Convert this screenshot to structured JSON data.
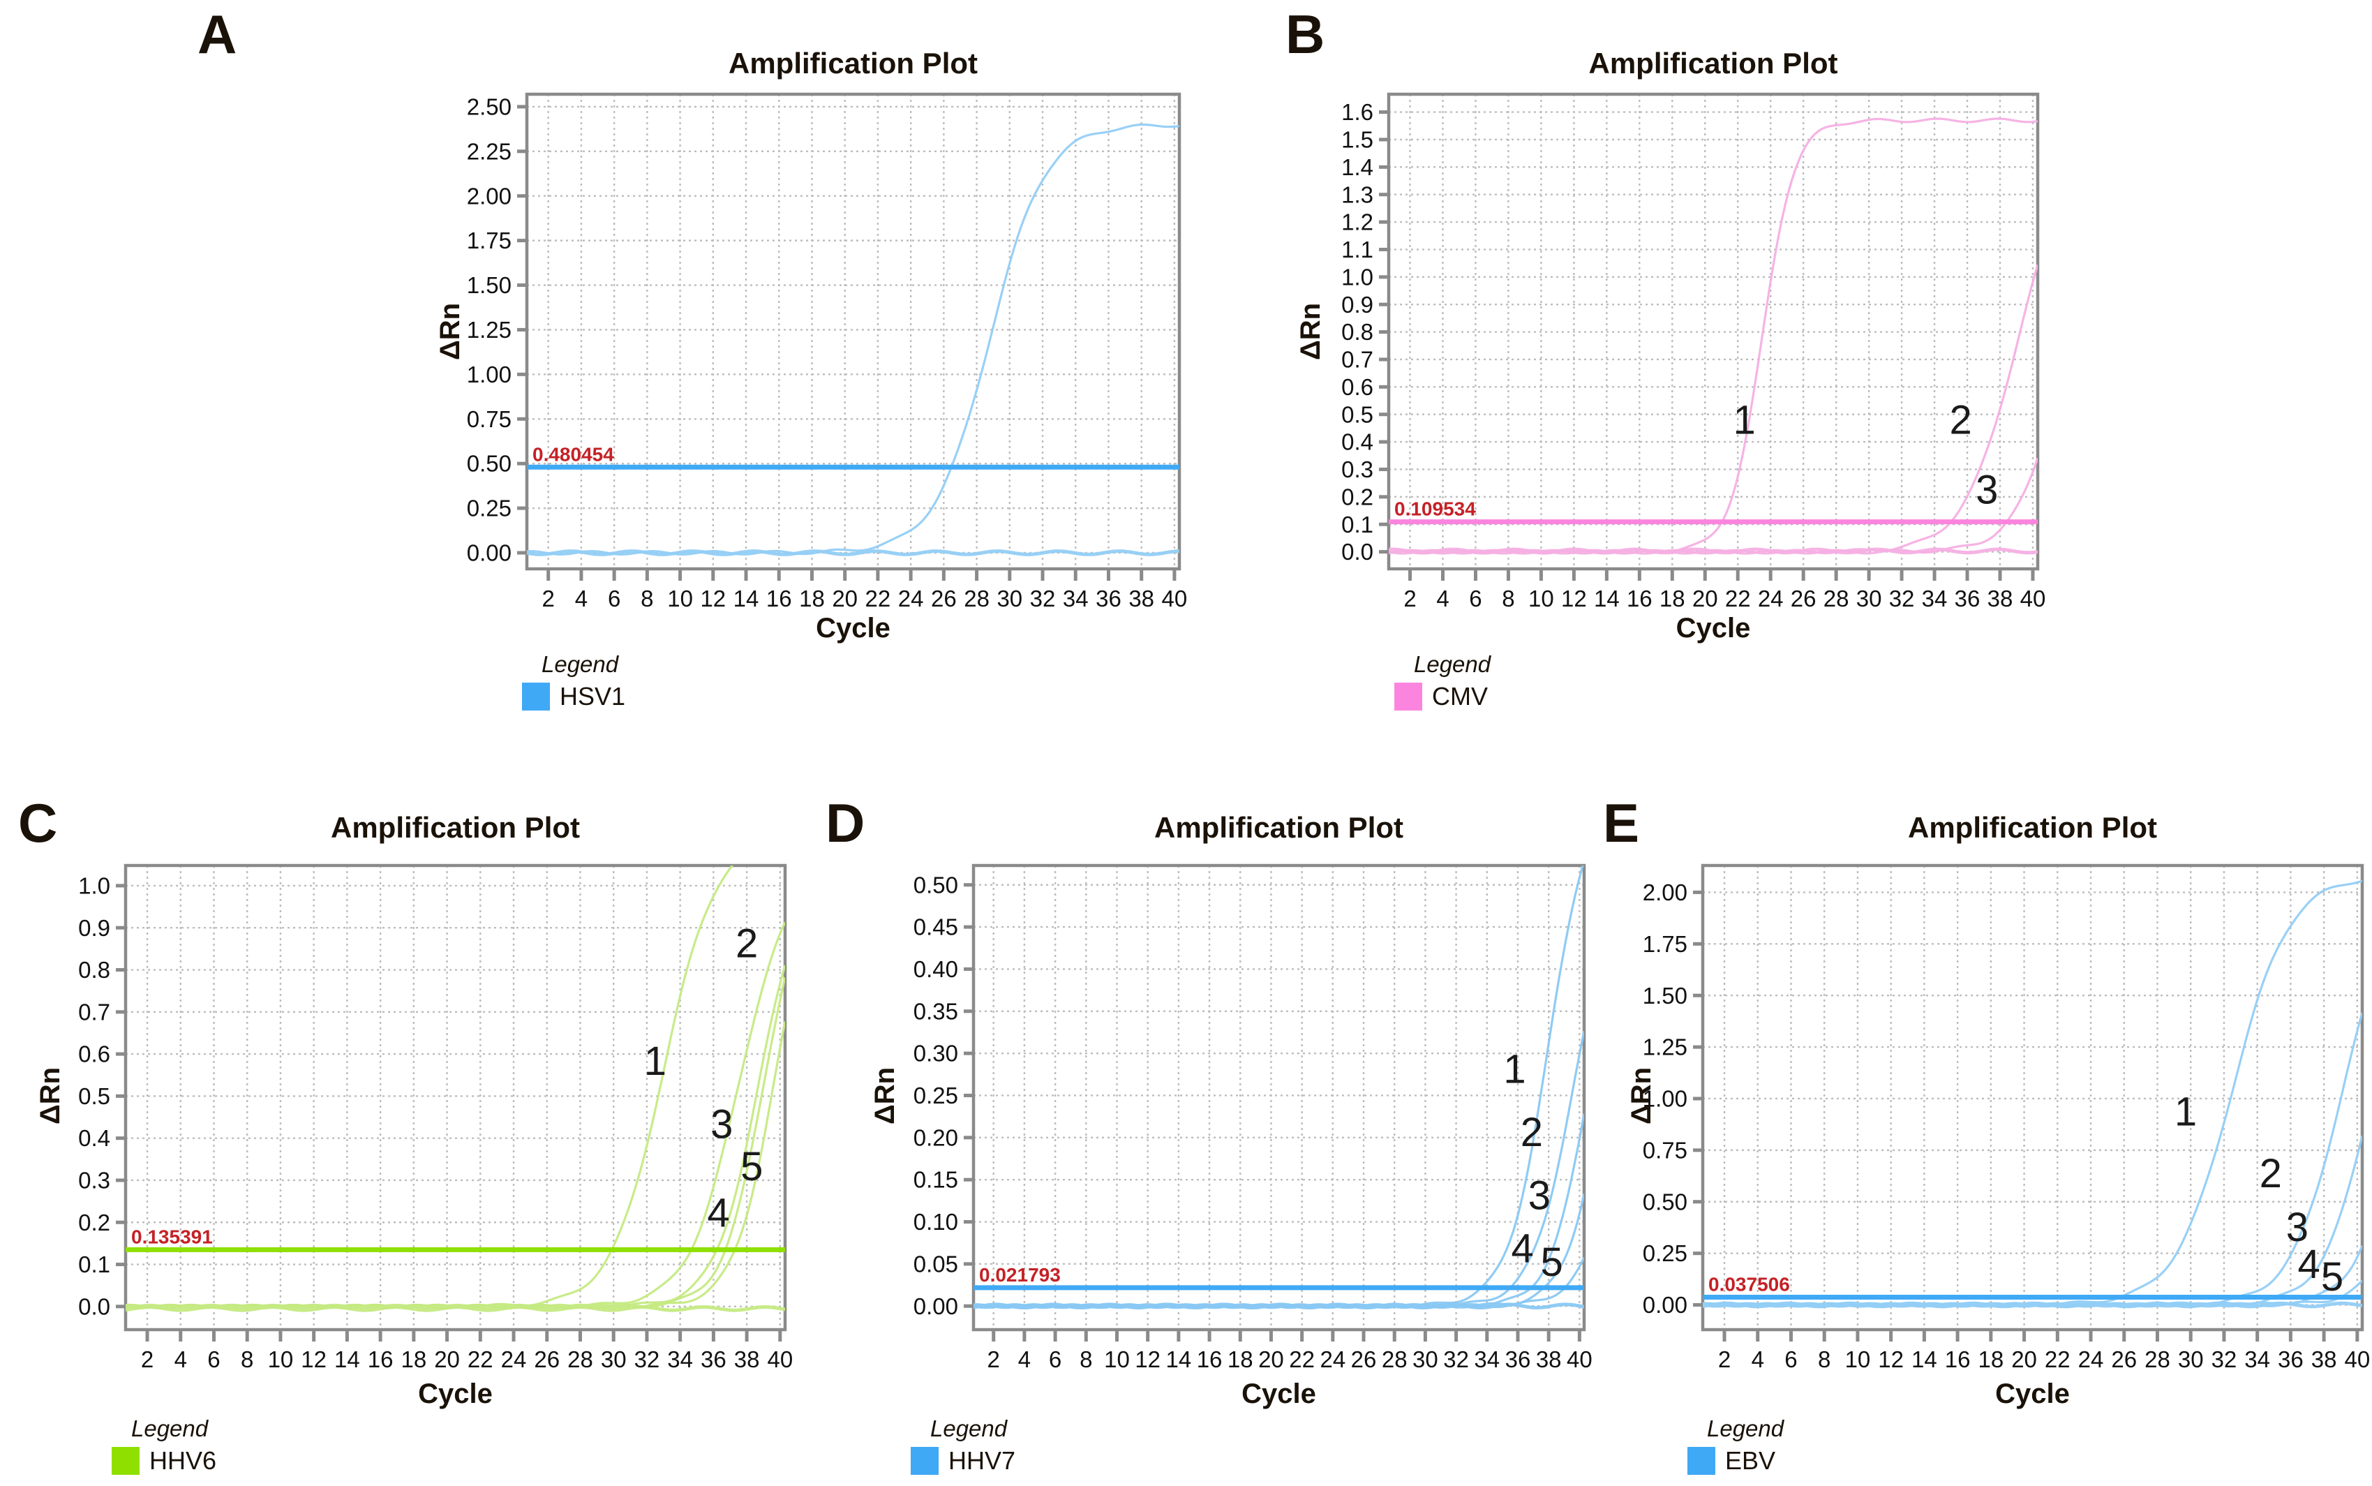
{
  "figure_colors": {
    "threshold_label_red": "#C42126",
    "grid": "#BDBDBD",
    "frame": "#8A8A8A",
    "text": "#111111"
  },
  "chart_data": [
    {
      "panel": "A",
      "type": "line",
      "title": "Amplification Plot",
      "xlabel": "Cycle",
      "ylabel": "ΔRn",
      "legend_title": "Legend",
      "legend_label": "HSV1",
      "color": "#3FA9F5",
      "curve_color": "#92CDF6",
      "threshold": {
        "value": "0.480454",
        "y": 0.48
      },
      "xlim": [
        0.7,
        40.3
      ],
      "ylim": [
        -0.09,
        2.57
      ],
      "x_ticks": [
        2,
        4,
        6,
        8,
        10,
        12,
        14,
        16,
        18,
        20,
        22,
        24,
        26,
        28,
        30,
        32,
        34,
        36,
        38,
        40
      ],
      "y_tick_vals": [
        0,
        0.25,
        0.5,
        0.75,
        1,
        1.25,
        1.5,
        1.75,
        2,
        2.25,
        2.5
      ],
      "y_tick_labels": [
        "0.00",
        "0.25",
        "0.50",
        "0.75",
        "1.00",
        "1.25",
        "1.50",
        "1.75",
        "2.00",
        "2.25",
        "2.50"
      ],
      "series": [
        {
          "name": "HSV1 positive sample",
          "kind": "sigmoid",
          "plateau": 2.4,
          "midpoint": 28.8,
          "k": 1.66
        },
        {
          "name": "negative baseline",
          "kind": "flat",
          "y": 0.0
        }
      ],
      "curve_labels": []
    },
    {
      "panel": "B",
      "type": "line",
      "title": "Amplification Plot",
      "xlabel": "Cycle",
      "ylabel": "ΔRn",
      "legend_title": "Legend",
      "legend_label": "CMV",
      "color": "#FB85DE",
      "curve_color": "#F5AFE3",
      "threshold": {
        "value": "0.109534",
        "y": 0.109
      },
      "xlim": [
        0.7,
        40.3
      ],
      "ylim": [
        -0.062,
        1.665
      ],
      "x_ticks": [
        2,
        4,
        6,
        8,
        10,
        12,
        14,
        16,
        18,
        20,
        22,
        24,
        26,
        28,
        30,
        32,
        34,
        36,
        38,
        40
      ],
      "y_tick_vals": [
        0,
        0.1,
        0.2,
        0.3,
        0.4,
        0.5,
        0.6,
        0.7,
        0.8,
        0.9,
        1.0,
        1.1,
        1.2,
        1.3,
        1.4,
        1.5,
        1.6
      ],
      "y_tick_labels": [
        "0.0",
        "0.1",
        "0.2",
        "0.3",
        "0.4",
        "0.5",
        "0.6",
        "0.7",
        "0.8",
        "0.9",
        "1.0",
        "1.1",
        "1.2",
        "1.3",
        "1.4",
        "1.5",
        "1.6"
      ],
      "series": [
        {
          "name": "1",
          "kind": "sigmoid",
          "plateau": 1.57,
          "midpoint": 23.5,
          "k": 0.97
        },
        {
          "name": "2",
          "kind": "sigmoid",
          "plateau": 1.5,
          "midpoint": 39.0,
          "k": 1.6
        },
        {
          "name": "3",
          "kind": "sigmoid",
          "plateau": 1.5,
          "midpoint": 42.0,
          "k": 1.4
        },
        {
          "name": "baseline",
          "kind": "flat",
          "y": 0.003
        }
      ],
      "curve_labels": [
        {
          "text": "1",
          "x": 22.4,
          "y": 0.43
        },
        {
          "text": "2",
          "x": 35.6,
          "y": 0.43
        },
        {
          "text": "3",
          "x": 37.2,
          "y": 0.175
        }
      ]
    },
    {
      "panel": "C",
      "type": "line",
      "title": "Amplification Plot",
      "xlabel": "Cycle",
      "ylabel": "ΔRn",
      "legend_title": "Legend",
      "legend_label": "HHV6",
      "color": "#8FE000",
      "curve_color": "#C5EA82",
      "threshold": {
        "value": "0.135391",
        "y": 0.135
      },
      "xlim": [
        0.7,
        40.3
      ],
      "ylim": [
        -0.055,
        1.048
      ],
      "x_ticks": [
        2,
        4,
        6,
        8,
        10,
        12,
        14,
        16,
        18,
        20,
        22,
        24,
        26,
        28,
        30,
        32,
        34,
        36,
        38,
        40
      ],
      "y_tick_vals": [
        0,
        0.1,
        0.2,
        0.3,
        0.4,
        0.5,
        0.6,
        0.7,
        0.8,
        0.9,
        1.0
      ],
      "y_tick_labels": [
        "0.0",
        "0.1",
        "0.2",
        "0.3",
        "0.4",
        "0.5",
        "0.6",
        "0.7",
        "0.8",
        "0.9",
        "1.0"
      ],
      "series": [
        {
          "name": "1",
          "kind": "sigmoid",
          "plateau": 1.12,
          "midpoint": 33.0,
          "k": 1.55
        },
        {
          "name": "2",
          "kind": "sigmoid",
          "plateau": 1.05,
          "midpoint": 37.5,
          "k": 1.5
        },
        {
          "name": "3",
          "kind": "sigmoid",
          "plateau": 1.05,
          "midpoint": 38.7,
          "k": 1.3
        },
        {
          "name": "4",
          "kind": "sigmoid",
          "plateau": 1.05,
          "midpoint": 39.0,
          "k": 1.2
        },
        {
          "name": "5",
          "kind": "sigmoid",
          "plateau": 1.05,
          "midpoint": 39.6,
          "k": 1.2
        },
        {
          "name": "baseline",
          "kind": "flat",
          "y": -0.005
        }
      ],
      "curve_labels": [
        {
          "text": "1",
          "x": 32.5,
          "y": 0.55
        },
        {
          "text": "2",
          "x": 38.0,
          "y": 0.83
        },
        {
          "text": "3",
          "x": 36.5,
          "y": 0.4
        },
        {
          "text": "4",
          "x": 36.3,
          "y": 0.19
        },
        {
          "text": "5",
          "x": 38.3,
          "y": 0.3
        }
      ]
    },
    {
      "panel": "D",
      "type": "line",
      "title": "Amplification Plot",
      "xlabel": "Cycle",
      "ylabel": "ΔRn",
      "legend_title": "Legend",
      "legend_label": "HHV7",
      "color": "#3FA9F5",
      "curve_color": "#89C8F3",
      "threshold": {
        "value": "0.021793",
        "y": 0.0218
      },
      "xlim": [
        0.7,
        40.3
      ],
      "ylim": [
        -0.028,
        0.523
      ],
      "x_ticks": [
        2,
        4,
        6,
        8,
        10,
        12,
        14,
        16,
        18,
        20,
        22,
        24,
        26,
        28,
        30,
        32,
        34,
        36,
        38,
        40
      ],
      "y_tick_vals": [
        0,
        0.05,
        0.1,
        0.15,
        0.2,
        0.25,
        0.3,
        0.35,
        0.4,
        0.45,
        0.5
      ],
      "y_tick_labels": [
        "0.00",
        "0.05",
        "0.10",
        "0.15",
        "0.20",
        "0.25",
        "0.30",
        "0.35",
        "0.40",
        "0.45",
        "0.50"
      ],
      "series": [
        {
          "name": "1",
          "kind": "sigmoid",
          "plateau": 0.62,
          "midpoint": 38.0,
          "k": 1.3
        },
        {
          "name": "2",
          "kind": "sigmoid",
          "plateau": 0.5,
          "midpoint": 39.5,
          "k": 1.3
        },
        {
          "name": "3",
          "kind": "sigmoid",
          "plateau": 0.5,
          "midpoint": 40.5,
          "k": 1.2
        },
        {
          "name": "4",
          "kind": "sigmoid",
          "plateau": 0.5,
          "midpoint": 41.5,
          "k": 1.2
        },
        {
          "name": "5",
          "kind": "sigmoid",
          "plateau": 0.5,
          "midpoint": 43.0,
          "k": 1.3
        },
        {
          "name": "baseline",
          "kind": "flat",
          "y": 0.0
        }
      ],
      "curve_labels": [
        {
          "text": "1",
          "x": 35.8,
          "y": 0.265
        },
        {
          "text": "2",
          "x": 36.9,
          "y": 0.19
        },
        {
          "text": "3",
          "x": 37.4,
          "y": 0.115
        },
        {
          "text": "4",
          "x": 36.3,
          "y": 0.052
        },
        {
          "text": "5",
          "x": 38.2,
          "y": 0.036
        }
      ]
    },
    {
      "panel": "E",
      "type": "line",
      "title": "Amplification Plot",
      "xlabel": "Cycle",
      "ylabel": "ΔRn",
      "legend_title": "Legend",
      "legend_label": "EBV",
      "color": "#3FA9F5",
      "curve_color": "#92CDF6",
      "threshold": {
        "value": "0.037506",
        "y": 0.0375
      },
      "xlim": [
        0.7,
        40.3
      ],
      "ylim": [
        -0.12,
        2.13
      ],
      "x_ticks": [
        2,
        4,
        6,
        8,
        10,
        12,
        14,
        16,
        18,
        20,
        22,
        24,
        26,
        28,
        30,
        32,
        34,
        36,
        38,
        40
      ],
      "y_tick_vals": [
        0,
        0.25,
        0.5,
        0.75,
        1,
        1.25,
        1.5,
        1.75,
        2
      ],
      "y_tick_labels": [
        "0.00",
        "0.25",
        "0.50",
        "0.75",
        "1.00",
        "1.25",
        "1.50",
        "1.75",
        "2.00"
      ],
      "series": [
        {
          "name": "1",
          "kind": "sigmoid",
          "plateau": 2.08,
          "midpoint": 32.5,
          "k": 1.7
        },
        {
          "name": "2",
          "kind": "sigmoid",
          "plateau": 2.0,
          "midpoint": 39.0,
          "k": 1.5
        },
        {
          "name": "3",
          "kind": "sigmoid",
          "plateau": 2.0,
          "midpoint": 40.8,
          "k": 1.4
        },
        {
          "name": "4",
          "kind": "sigmoid",
          "plateau": 2.0,
          "midpoint": 42.6,
          "k": 1.3
        },
        {
          "name": "5",
          "kind": "sigmoid",
          "plateau": 2.0,
          "midpoint": 44.0,
          "k": 1.3
        },
        {
          "name": "baseline",
          "kind": "flat",
          "y": 0.0
        }
      ],
      "curve_labels": [
        {
          "text": "1",
          "x": 29.7,
          "y": 0.87
        },
        {
          "text": "2",
          "x": 34.8,
          "y": 0.57
        },
        {
          "text": "3",
          "x": 36.4,
          "y": 0.31
        },
        {
          "text": "4",
          "x": 37.1,
          "y": 0.13
        },
        {
          "text": "5",
          "x": 38.5,
          "y": 0.07
        }
      ]
    }
  ]
}
